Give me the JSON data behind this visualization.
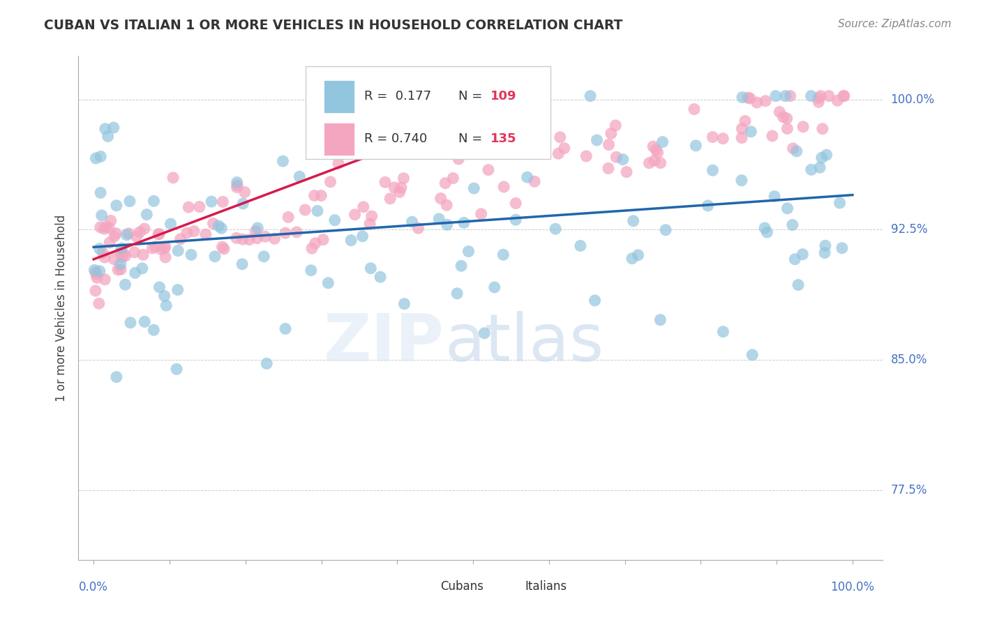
{
  "title": "CUBAN VS ITALIAN 1 OR MORE VEHICLES IN HOUSEHOLD CORRELATION CHART",
  "source": "Source: ZipAtlas.com",
  "ylabel": "1 or more Vehicles in Household",
  "color_cubans": "#92c5de",
  "color_italians": "#f4a6c0",
  "line_color_cubans": "#2166ac",
  "line_color_italians": "#d6194b",
  "legend_R_cubans": "R =  0.177",
  "legend_N_cubans": "N = 109",
  "legend_R_italians": "R = 0.740",
  "legend_N_italians": "N = 135",
  "legend_cubans": "Cubans",
  "legend_italians": "Italians",
  "ytick_vals": [
    0.775,
    0.85,
    0.925,
    1.0
  ],
  "ytick_labels": [
    "77.5%",
    "85.0%",
    "92.5%",
    "100.0%"
  ],
  "xlim": [
    -0.02,
    1.04
  ],
  "ylim": [
    0.735,
    1.025
  ],
  "blue_line_x": [
    0.0,
    1.0
  ],
  "blue_line_y": [
    0.915,
    0.945
  ],
  "pink_line_x": [
    0.0,
    0.55
  ],
  "pink_line_y": [
    0.91,
    1.005
  ]
}
